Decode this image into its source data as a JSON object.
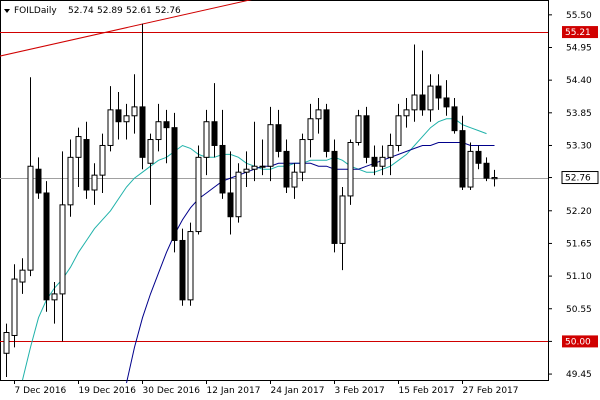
{
  "chart_data": {
    "type": "candlestick",
    "title": "FOILDaily",
    "ohlc_header": {
      "open": "52.74",
      "high": "52.89",
      "low": "52.61",
      "close": "52.76"
    },
    "ylim": [
      49.35,
      55.75
    ],
    "y_ticks": [
      "55.50",
      "54.95",
      "54.40",
      "53.85",
      "53.30",
      "52.76",
      "52.20",
      "51.65",
      "51.10",
      "50.55",
      "50.00",
      "49.45"
    ],
    "x_ticks": [
      {
        "label": "7 Dec 2016",
        "index": 1
      },
      {
        "label": "19 Dec 2016",
        "index": 9
      },
      {
        "label": "30 Dec 2016",
        "index": 17
      },
      {
        "label": "12 Jan 2017",
        "index": 25
      },
      {
        "label": "24 Jan 2017",
        "index": 33
      },
      {
        "label": "3 Feb 2017",
        "index": 41
      },
      {
        "label": "15 Feb 2017",
        "index": 49
      },
      {
        "label": "27 Feb 2017",
        "index": 57
      }
    ],
    "candles": [
      {
        "o": 49.8,
        "h": 50.3,
        "l": 49.4,
        "c": 50.15
      },
      {
        "o": 50.1,
        "h": 51.3,
        "l": 49.9,
        "c": 51.05
      },
      {
        "o": 51.0,
        "h": 51.4,
        "l": 50.8,
        "c": 51.2
      },
      {
        "o": 51.2,
        "h": 54.45,
        "l": 51.1,
        "c": 52.95
      },
      {
        "o": 52.9,
        "h": 53.1,
        "l": 52.4,
        "c": 52.5
      },
      {
        "o": 52.5,
        "h": 52.7,
        "l": 50.5,
        "c": 50.7
      },
      {
        "o": 50.7,
        "h": 51.0,
        "l": 50.3,
        "c": 50.8
      },
      {
        "o": 50.8,
        "h": 53.2,
        "l": 50.0,
        "c": 52.3
      },
      {
        "o": 52.3,
        "h": 53.4,
        "l": 52.1,
        "c": 53.1
      },
      {
        "o": 53.1,
        "h": 53.6,
        "l": 52.6,
        "c": 53.45
      },
      {
        "o": 53.4,
        "h": 53.7,
        "l": 52.4,
        "c": 52.55
      },
      {
        "o": 52.55,
        "h": 53.0,
        "l": 52.3,
        "c": 52.8
      },
      {
        "o": 52.8,
        "h": 53.5,
        "l": 52.5,
        "c": 53.3
      },
      {
        "o": 53.3,
        "h": 54.3,
        "l": 53.2,
        "c": 53.9
      },
      {
        "o": 53.9,
        "h": 54.2,
        "l": 53.4,
        "c": 53.7
      },
      {
        "o": 53.7,
        "h": 54.0,
        "l": 53.4,
        "c": 53.8
      },
      {
        "o": 53.8,
        "h": 54.5,
        "l": 53.5,
        "c": 53.95
      },
      {
        "o": 53.95,
        "h": 55.35,
        "l": 52.9,
        "c": 53.1
      },
      {
        "o": 53.0,
        "h": 53.5,
        "l": 52.3,
        "c": 53.4
      },
      {
        "o": 53.4,
        "h": 54.0,
        "l": 53.2,
        "c": 53.7
      },
      {
        "o": 53.7,
        "h": 53.9,
        "l": 53.0,
        "c": 53.6
      },
      {
        "o": 53.6,
        "h": 53.85,
        "l": 51.5,
        "c": 51.7
      },
      {
        "o": 51.7,
        "h": 51.9,
        "l": 50.6,
        "c": 50.7
      },
      {
        "o": 50.7,
        "h": 52.0,
        "l": 50.6,
        "c": 51.85
      },
      {
        "o": 51.85,
        "h": 53.3,
        "l": 51.8,
        "c": 53.1
      },
      {
        "o": 53.1,
        "h": 53.9,
        "l": 52.8,
        "c": 53.7
      },
      {
        "o": 53.7,
        "h": 54.35,
        "l": 53.1,
        "c": 53.3
      },
      {
        "o": 53.3,
        "h": 53.9,
        "l": 52.4,
        "c": 52.5
      },
      {
        "o": 52.5,
        "h": 53.2,
        "l": 51.8,
        "c": 52.1
      },
      {
        "o": 52.1,
        "h": 53.0,
        "l": 52.0,
        "c": 52.85
      },
      {
        "o": 52.85,
        "h": 53.2,
        "l": 52.6,
        "c": 52.9
      },
      {
        "o": 52.9,
        "h": 53.7,
        "l": 52.7,
        "c": 52.95
      },
      {
        "o": 52.95,
        "h": 53.4,
        "l": 52.8,
        "c": 52.95
      },
      {
        "o": 52.95,
        "h": 53.95,
        "l": 52.7,
        "c": 53.65
      },
      {
        "o": 53.65,
        "h": 53.9,
        "l": 53.1,
        "c": 53.2
      },
      {
        "o": 53.2,
        "h": 53.4,
        "l": 52.5,
        "c": 52.6
      },
      {
        "o": 52.6,
        "h": 53.0,
        "l": 52.4,
        "c": 52.85
      },
      {
        "o": 52.85,
        "h": 53.5,
        "l": 52.7,
        "c": 53.4
      },
      {
        "o": 53.4,
        "h": 54.0,
        "l": 53.1,
        "c": 53.75
      },
      {
        "o": 53.75,
        "h": 54.1,
        "l": 53.5,
        "c": 53.9
      },
      {
        "o": 53.9,
        "h": 54.0,
        "l": 53.1,
        "c": 53.2
      },
      {
        "o": 53.2,
        "h": 53.4,
        "l": 51.5,
        "c": 51.65
      },
      {
        "o": 51.65,
        "h": 52.6,
        "l": 51.2,
        "c": 52.45
      },
      {
        "o": 52.45,
        "h": 53.4,
        "l": 52.3,
        "c": 53.35
      },
      {
        "o": 53.35,
        "h": 53.9,
        "l": 53.3,
        "c": 53.8
      },
      {
        "o": 53.8,
        "h": 53.95,
        "l": 53.0,
        "c": 53.1
      },
      {
        "o": 53.1,
        "h": 53.3,
        "l": 52.8,
        "c": 52.95
      },
      {
        "o": 52.95,
        "h": 53.3,
        "l": 52.8,
        "c": 53.1
      },
      {
        "o": 53.1,
        "h": 53.5,
        "l": 52.8,
        "c": 53.3
      },
      {
        "o": 53.3,
        "h": 54.0,
        "l": 53.2,
        "c": 53.8
      },
      {
        "o": 53.8,
        "h": 54.1,
        "l": 53.6,
        "c": 53.9
      },
      {
        "o": 53.9,
        "h": 55.0,
        "l": 53.7,
        "c": 54.15
      },
      {
        "o": 54.15,
        "h": 54.9,
        "l": 53.8,
        "c": 53.9
      },
      {
        "o": 53.9,
        "h": 54.5,
        "l": 53.7,
        "c": 54.3
      },
      {
        "o": 54.3,
        "h": 54.5,
        "l": 53.9,
        "c": 54.1
      },
      {
        "o": 54.1,
        "h": 54.4,
        "l": 53.8,
        "c": 53.95
      },
      {
        "o": 53.95,
        "h": 54.1,
        "l": 53.5,
        "c": 53.55
      },
      {
        "o": 53.55,
        "h": 53.8,
        "l": 52.55,
        "c": 52.6
      },
      {
        "o": 52.6,
        "h": 53.35,
        "l": 52.55,
        "c": 53.2
      },
      {
        "o": 53.2,
        "h": 53.3,
        "l": 52.9,
        "c": 53.0
      },
      {
        "o": 53.0,
        "h": 53.1,
        "l": 52.7,
        "c": 52.75
      },
      {
        "o": 52.74,
        "h": 52.89,
        "l": 52.61,
        "c": 52.76
      }
    ],
    "moving_averages": [
      {
        "color": "#20b2aa",
        "start_index": 2,
        "values": [
          49.35,
          49.9,
          50.4,
          50.7,
          50.9,
          51.05,
          51.25,
          51.5,
          51.7,
          51.9,
          52.05,
          52.2,
          52.4,
          52.6,
          52.75,
          52.85,
          52.95,
          53.05,
          53.1,
          53.2,
          53.3,
          53.25,
          53.15,
          53.1,
          53.1,
          53.15,
          53.15,
          53.1,
          53.0,
          52.95,
          52.9,
          52.9,
          52.95,
          52.95,
          53.0,
          53.0,
          53.05,
          53.05,
          53.05,
          53.1,
          53.05,
          52.95,
          52.9,
          52.85,
          52.85,
          52.9,
          52.95,
          53.05,
          53.15,
          53.3,
          53.45,
          53.6,
          53.7,
          53.75,
          53.75,
          53.65,
          53.6,
          53.55,
          53.5
        ]
      },
      {
        "color": "#00008b",
        "start_index": 15,
        "values": [
          49.3,
          49.9,
          50.4,
          50.8,
          51.15,
          51.5,
          51.8,
          52.05,
          52.25,
          52.4,
          52.5,
          52.6,
          52.7,
          52.75,
          52.8,
          52.85,
          52.9,
          52.95,
          52.95,
          53.0,
          53.0,
          53.0,
          53.0,
          53.0,
          52.95,
          52.95,
          52.9,
          52.9,
          52.9,
          52.9,
          52.95,
          53.0,
          53.05,
          53.1,
          53.15,
          53.2,
          53.25,
          53.3,
          53.3,
          53.35,
          53.35,
          53.35,
          53.35,
          53.3,
          53.3,
          53.3,
          53.3
        ]
      }
    ],
    "levels": [
      {
        "value": 55.21,
        "label": "55.21",
        "color": "#d00000"
      },
      {
        "value": 50.0,
        "label": "50.00",
        "color": "#d00000"
      }
    ],
    "trendline": {
      "color": "#d00000",
      "from": {
        "index": -1,
        "value": 54.8
      },
      "to": {
        "index": 37,
        "value": 55.95
      }
    },
    "last_price": {
      "value": 52.76,
      "label": "52.76"
    },
    "grid": false
  }
}
